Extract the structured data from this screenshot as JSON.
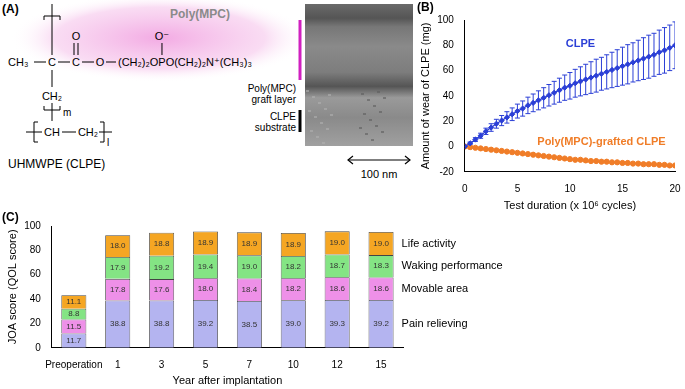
{
  "panel_a": {
    "panel": "(A)",
    "polymer_label": "Poly(MPC)",
    "structure": {
      "methyl": "CH₃",
      "carbon": "C",
      "carbonyl_carbon": "C",
      "ester_oxygen": "O",
      "side_chain": "(CH₂)₂OPO(CH₂)₂N⁺(CH₃)₃",
      "carbonyl_oxygen": "O",
      "phosphate_oxygen": "O⁻",
      "methylene": "CH₂",
      "repeat_m": "m",
      "backbone": [
        "CH",
        "CH₂"
      ],
      "repeat_l": "l",
      "name": "UHMWPE (CLPE)"
    },
    "image_labels": {
      "graft_layer": [
        "Poly(MPC)",
        "graft layer"
      ],
      "substrate": [
        "CLPE",
        "substrate"
      ],
      "scale_bar": "100 nm"
    }
  },
  "chart_data": [
    {
      "panel": "(B)",
      "type": "line",
      "xlabel": "Test duration (x 10⁶ cycles)",
      "ylabel": "Amount of wear of CLPE (mg)",
      "x": [
        0,
        0.5,
        1,
        1.5,
        2,
        2.5,
        3,
        3.5,
        4,
        4.5,
        5,
        5.5,
        6,
        6.5,
        7,
        7.5,
        8,
        8.5,
        9,
        9.5,
        10,
        10.5,
        11,
        11.5,
        12,
        12.5,
        13,
        13.5,
        14,
        14.5,
        15,
        15.5,
        16,
        16.5,
        17,
        17.5,
        18,
        18.5,
        19,
        19.5,
        20
      ],
      "series": [
        {
          "name": "CLPE",
          "color": "#2b3fd6",
          "marker": "diamond",
          "values": [
            0,
            2.5,
            5.5,
            8.5,
            12,
            15,
            18,
            20.5,
            23,
            25.5,
            28,
            30,
            32.5,
            34.5,
            36.5,
            38.5,
            40.5,
            42.5,
            44.5,
            46.5,
            48,
            50,
            51.5,
            53,
            54.5,
            56,
            57.5,
            59,
            60.5,
            62,
            63.5,
            65,
            66.5,
            68,
            69.5,
            71,
            72.5,
            74.5,
            76,
            78,
            80
          ],
          "errors": [
            0,
            1,
            1.5,
            2,
            2.5,
            3,
            3.5,
            4,
            4.5,
            5,
            5.5,
            6,
            6.5,
            7,
            7.5,
            8,
            8.5,
            9,
            9.5,
            10,
            10.5,
            11,
            11.5,
            12,
            12.5,
            13,
            13,
            13.5,
            14,
            14.5,
            15,
            15.5,
            15.5,
            16,
            16.5,
            17,
            17,
            17.5,
            18,
            18,
            18.5
          ]
        },
        {
          "name": "Poly(MPC)-grafted CLPE",
          "color": "#f07d28",
          "marker": "circle",
          "values": [
            0,
            -0.5,
            -1,
            -1.5,
            -2,
            -2.5,
            -3,
            -3.5,
            -4,
            -4.5,
            -5,
            -5.5,
            -6,
            -6.5,
            -7,
            -7.5,
            -8,
            -8.5,
            -9,
            -9.5,
            -10,
            -10.5,
            -10.5,
            -11,
            -11.5,
            -11.5,
            -12,
            -12,
            -12.5,
            -12.5,
            -13,
            -13,
            -13.5,
            -13.5,
            -14,
            -14,
            -14,
            -14.5,
            -14.5,
            -15,
            -15
          ]
        }
      ],
      "xlim": [
        0,
        20
      ],
      "xticks": [
        0,
        5,
        10,
        15,
        20
      ],
      "ylim": [
        -20,
        100
      ],
      "yticks": [
        -20,
        0,
        20,
        40,
        60,
        80,
        100
      ],
      "grid": false
    },
    {
      "panel": "(C)",
      "type": "bar",
      "stacked": true,
      "data_labels": true,
      "xlabel": "Year after implantation",
      "ylabel": "JOA score (QOL score)",
      "categories": [
        "Preoperation",
        "1",
        "3",
        "5",
        "7",
        "10",
        "12",
        "15"
      ],
      "series": [
        {
          "name": "Pain relieving",
          "color": "#b4b4f0",
          "values": [
            11.7,
            38.8,
            38.8,
            39.2,
            38.5,
            39.0,
            39.3,
            39.2
          ],
          "value_labels": [
            "11.7",
            "38.8",
            "38.8",
            "39.2",
            "38.5",
            "39.0",
            "39.3",
            "39.2"
          ]
        },
        {
          "name": "Movable area",
          "color": "#ee90e8",
          "values": [
            11.5,
            17.8,
            17.6,
            18.0,
            18.4,
            18.2,
            18.6,
            18.6
          ],
          "value_labels": [
            "11.5",
            "17.8",
            "17.6",
            "18.0",
            "18.4",
            "18.2",
            "18.6",
            "18.6"
          ]
        },
        {
          "name": "Waking performance",
          "color": "#84e484",
          "values": [
            8.8,
            17.9,
            19.2,
            19.4,
            19.0,
            18.2,
            18.7,
            18.3
          ],
          "value_labels": [
            "8.8",
            "17.9",
            "19.2",
            "19.4",
            "19.0",
            "18.2",
            "18.7",
            "18.3"
          ]
        },
        {
          "name": "Life activity",
          "color": "#f5a623",
          "values": [
            11.1,
            18.0,
            18.8,
            18.9,
            18.9,
            18.9,
            19.0,
            19.0
          ],
          "value_labels": [
            "11.1",
            "18.0",
            "18.8",
            "18.9",
            "18.9",
            "18.9",
            "19.0",
            "19.0"
          ]
        }
      ],
      "ylim": [
        0,
        100
      ],
      "yticks": [
        0,
        20,
        40,
        60,
        80,
        100
      ],
      "grid": false
    }
  ]
}
